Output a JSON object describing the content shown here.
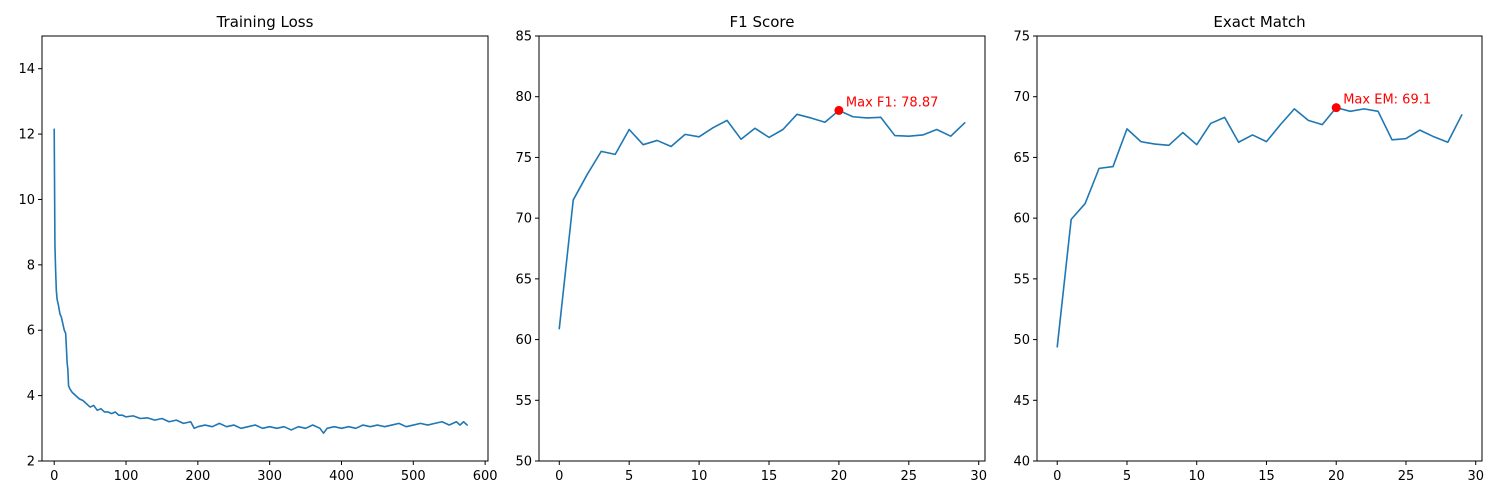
{
  "chart_data": [
    {
      "type": "line",
      "title": "Training Loss",
      "xlabel": "",
      "ylabel": "",
      "xlim": [
        -17,
        604
      ],
      "ylim": [
        2,
        15
      ],
      "xticks": [
        0,
        100,
        200,
        300,
        400,
        500,
        600
      ],
      "yticks": [
        2,
        4,
        6,
        8,
        10,
        12,
        14
      ],
      "grid": false,
      "series": [
        {
          "color": "#1f77b4",
          "x": [
            0,
            1,
            2,
            3,
            4,
            6,
            8,
            10,
            12,
            14,
            16,
            18,
            19,
            20,
            22,
            25,
            30,
            35,
            40,
            45,
            50,
            55,
            60,
            65,
            70,
            75,
            80,
            85,
            90,
            95,
            100,
            110,
            120,
            130,
            140,
            150,
            160,
            170,
            180,
            190,
            195,
            200,
            210,
            220,
            230,
            240,
            250,
            260,
            270,
            280,
            290,
            300,
            310,
            320,
            330,
            340,
            350,
            360,
            370,
            375,
            380,
            390,
            400,
            410,
            420,
            430,
            440,
            450,
            460,
            470,
            480,
            490,
            500,
            510,
            520,
            530,
            540,
            550,
            560,
            565,
            570,
            575
          ],
          "values": [
            12.15,
            8.6,
            7.8,
            7.2,
            6.95,
            6.75,
            6.5,
            6.4,
            6.2,
            6.0,
            5.9,
            5.0,
            4.8,
            4.3,
            4.2,
            4.1,
            4.0,
            3.9,
            3.85,
            3.75,
            3.65,
            3.7,
            3.55,
            3.6,
            3.5,
            3.5,
            3.45,
            3.5,
            3.4,
            3.4,
            3.35,
            3.38,
            3.3,
            3.32,
            3.25,
            3.3,
            3.2,
            3.25,
            3.15,
            3.2,
            3.0,
            3.05,
            3.1,
            3.05,
            3.15,
            3.05,
            3.1,
            3.0,
            3.05,
            3.1,
            3.0,
            3.05,
            3.0,
            3.05,
            2.95,
            3.05,
            3.0,
            3.1,
            3.0,
            2.85,
            3.0,
            3.05,
            3.0,
            3.05,
            3.0,
            3.1,
            3.05,
            3.1,
            3.05,
            3.1,
            3.15,
            3.05,
            3.1,
            3.15,
            3.1,
            3.15,
            3.2,
            3.1,
            3.2,
            3.1,
            3.2,
            3.1
          ]
        }
      ]
    },
    {
      "type": "line",
      "title": "F1 Score",
      "xlabel": "",
      "ylabel": "",
      "xlim": [
        -1.45,
        30.45
      ],
      "ylim": [
        50,
        85
      ],
      "xticks": [
        0,
        5,
        10,
        15,
        20,
        25,
        30
      ],
      "yticks": [
        50,
        55,
        60,
        65,
        70,
        75,
        80,
        85
      ],
      "grid": false,
      "series": [
        {
          "color": "#1f77b4",
          "x": [
            0,
            1,
            2,
            3,
            4,
            5,
            6,
            7,
            8,
            9,
            10,
            11,
            12,
            13,
            14,
            15,
            16,
            17,
            18,
            19,
            20,
            21,
            22,
            23,
            24,
            25,
            26,
            27,
            28,
            29
          ],
          "values": [
            60.9,
            71.5,
            73.6,
            75.5,
            75.25,
            77.3,
            76.05,
            76.4,
            75.9,
            76.9,
            76.7,
            77.45,
            78.05,
            76.5,
            77.4,
            76.65,
            77.3,
            78.55,
            78.25,
            77.9,
            78.87,
            78.35,
            78.25,
            78.3,
            76.8,
            76.75,
            76.85,
            77.3,
            76.75,
            77.85
          ]
        }
      ],
      "annotation": {
        "x": 20,
        "y": 78.87,
        "text": "Max F1: 78.87",
        "color": "#ff0000"
      }
    },
    {
      "type": "line",
      "title": "Exact Match",
      "xlabel": "",
      "ylabel": "",
      "xlim": [
        -1.45,
        30.45
      ],
      "ylim": [
        40,
        75
      ],
      "xticks": [
        0,
        5,
        10,
        15,
        20,
        25,
        30
      ],
      "yticks": [
        40,
        45,
        50,
        55,
        60,
        65,
        70,
        75
      ],
      "grid": false,
      "series": [
        {
          "color": "#1f77b4",
          "x": [
            0,
            1,
            2,
            3,
            4,
            5,
            6,
            7,
            8,
            9,
            10,
            11,
            12,
            13,
            14,
            15,
            16,
            17,
            18,
            19,
            20,
            21,
            22,
            23,
            24,
            25,
            26,
            27,
            28,
            29
          ],
          "values": [
            49.4,
            59.9,
            61.2,
            64.1,
            64.25,
            67.35,
            66.3,
            66.1,
            66.0,
            67.05,
            66.05,
            67.8,
            68.3,
            66.25,
            66.85,
            66.3,
            67.7,
            69.0,
            68.05,
            67.7,
            69.1,
            68.8,
            69.0,
            68.8,
            66.45,
            66.55,
            67.25,
            66.7,
            66.25,
            68.5
          ]
        }
      ],
      "annotation": {
        "x": 20,
        "y": 69.1,
        "text": "Max EM: 69.1",
        "color": "#ff0000"
      }
    }
  ]
}
